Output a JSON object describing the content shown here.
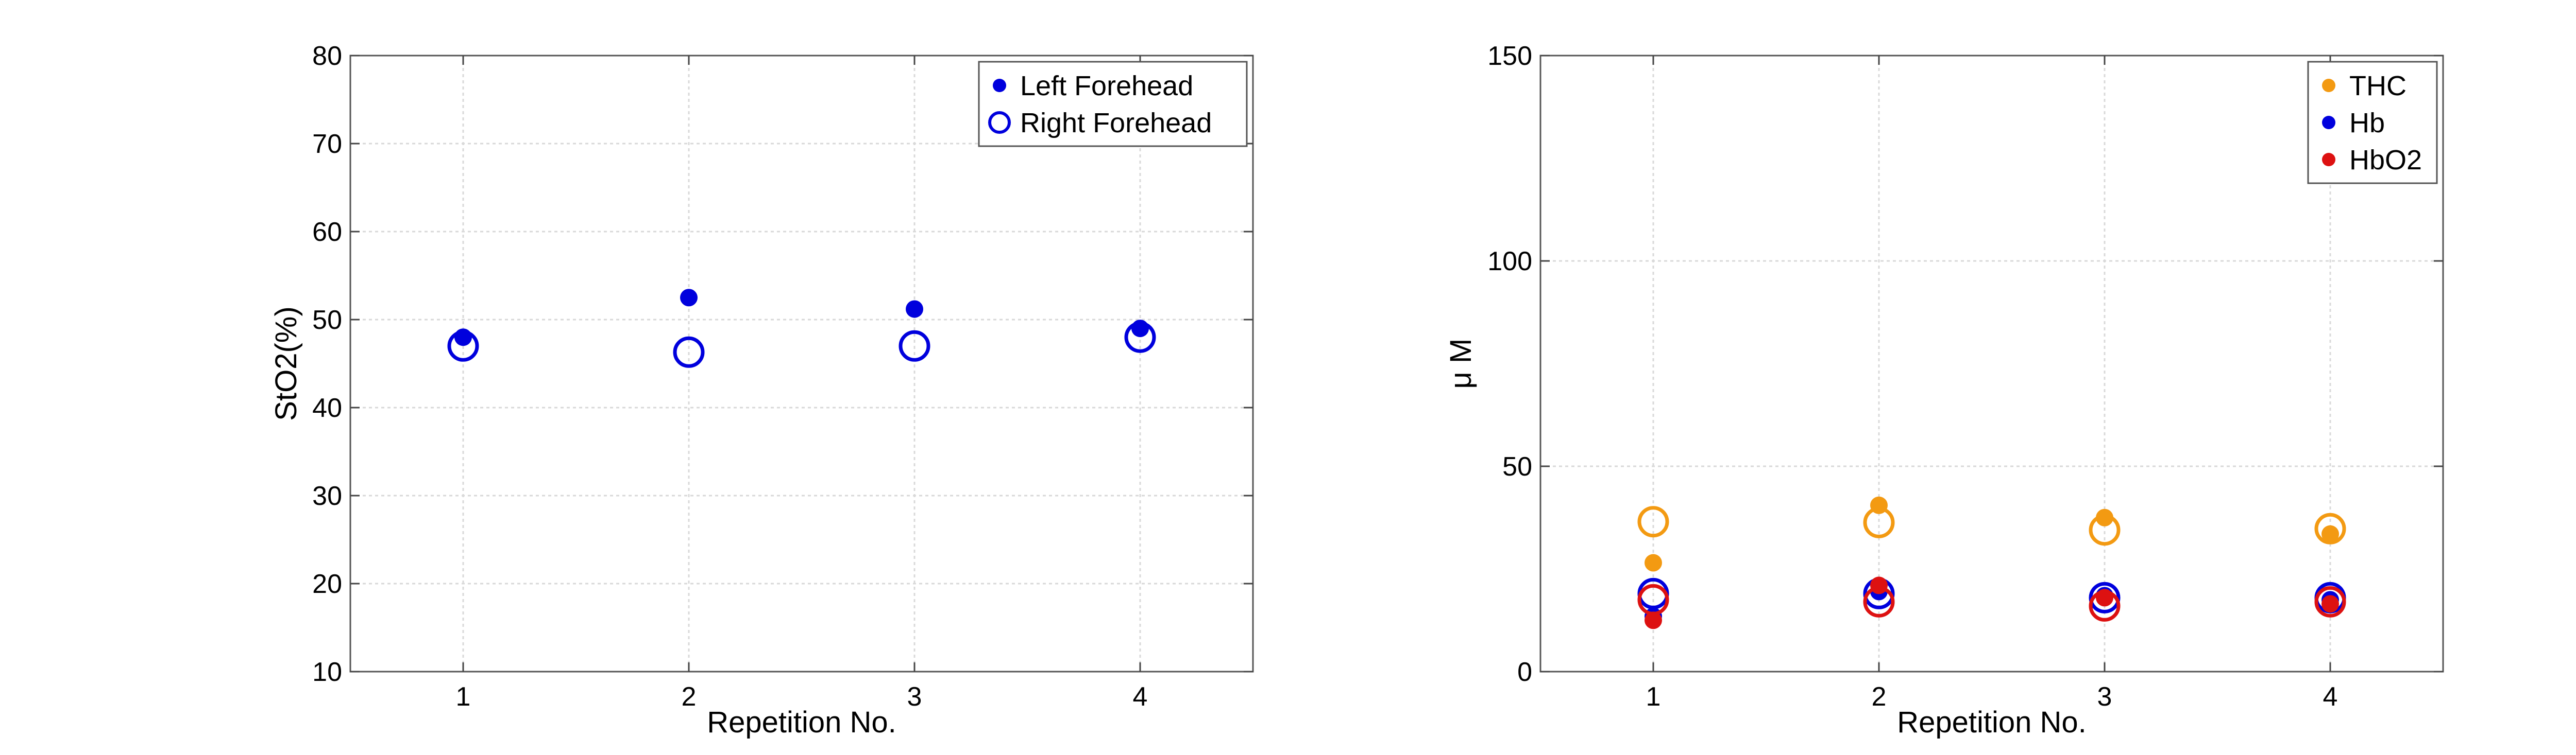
{
  "chart_data": [
    {
      "type": "scatter",
      "xlabel": "Repetition No.",
      "ylabel": "StO2(%)",
      "xlim": [
        0.5,
        4.5
      ],
      "ylim": [
        10,
        80
      ],
      "xticks": [
        1,
        2,
        3,
        4
      ],
      "yticks": [
        10,
        20,
        30,
        40,
        50,
        60,
        70,
        80
      ],
      "grid": true,
      "legend_position": "top-right",
      "series": [
        {
          "name": "Left Forehead",
          "marker": "filled-circle",
          "color": "#0000dd",
          "x": [
            1,
            2,
            3,
            4
          ],
          "y": [
            48,
            52.5,
            51.2,
            49
          ]
        },
        {
          "name": "Right Forehead",
          "marker": "open-circle",
          "color": "#0000dd",
          "x": [
            1,
            2,
            3,
            4
          ],
          "y": [
            47,
            46.3,
            47,
            48
          ]
        }
      ]
    },
    {
      "type": "scatter",
      "xlabel": "Repetition No.",
      "ylabel": "μ M",
      "xlim": [
        0.5,
        4.5
      ],
      "ylim": [
        0,
        150
      ],
      "xticks": [
        1,
        2,
        3,
        4
      ],
      "yticks": [
        0,
        50,
        100,
        150
      ],
      "grid": true,
      "legend_position": "top-right",
      "legend": [
        {
          "name": "THC",
          "color": "#f39a12"
        },
        {
          "name": "Hb",
          "color": "#0000dd"
        },
        {
          "name": "HbO2",
          "color": "#dd1111"
        }
      ],
      "series": [
        {
          "name": "THC",
          "marker": "filled-circle",
          "color": "#f39a12",
          "x": [
            1,
            2,
            3,
            4
          ],
          "y": [
            26.5,
            40.5,
            37.5,
            33.5
          ]
        },
        {
          "marker": "open-circle",
          "color": "#f39a12",
          "x": [
            1,
            2,
            3,
            4
          ],
          "y": [
            36.5,
            36.3,
            34.5,
            34.8
          ]
        },
        {
          "name": "Hb",
          "marker": "filled-circle",
          "color": "#0000dd",
          "x": [
            1,
            2,
            3,
            4
          ],
          "y": [
            13.5,
            19.5,
            18.5,
            17.5
          ]
        },
        {
          "marker": "open-circle",
          "color": "#0000dd",
          "x": [
            1,
            2,
            3,
            4
          ],
          "y": [
            19,
            19,
            18,
            18
          ]
        },
        {
          "name": "HbO2",
          "marker": "filled-circle",
          "color": "#dd1111",
          "x": [
            1,
            2,
            3,
            4
          ],
          "y": [
            12.5,
            21,
            18,
            16.5
          ]
        },
        {
          "marker": "open-circle",
          "color": "#dd1111",
          "x": [
            1,
            2,
            3,
            4
          ],
          "y": [
            17.5,
            17,
            16,
            17
          ]
        }
      ]
    }
  ]
}
